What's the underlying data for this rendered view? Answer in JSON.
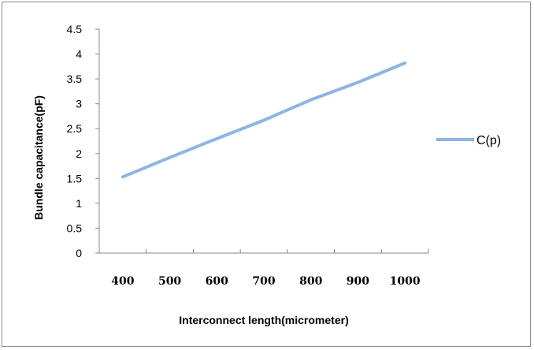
{
  "chart_data": {
    "type": "line",
    "xlabel": "Interconnect length(micrometer)",
    "ylabel": "Bundle capacitance(pF)",
    "categories": [
      "400",
      "500",
      "600",
      "700",
      "800",
      "900",
      "1000"
    ],
    "yticks": [
      "0",
      "0.5",
      "1",
      "1.5",
      "2",
      "2.5",
      "3",
      "3.5",
      "4",
      "4.5"
    ],
    "ylim": [
      0,
      4.5
    ],
    "grid": false,
    "legend_position": "right",
    "series": [
      {
        "name": "C(p)",
        "color": "#8eb4e3",
        "values": [
          1.53,
          1.92,
          2.3,
          2.67,
          3.08,
          3.43,
          3.82
        ]
      }
    ]
  }
}
